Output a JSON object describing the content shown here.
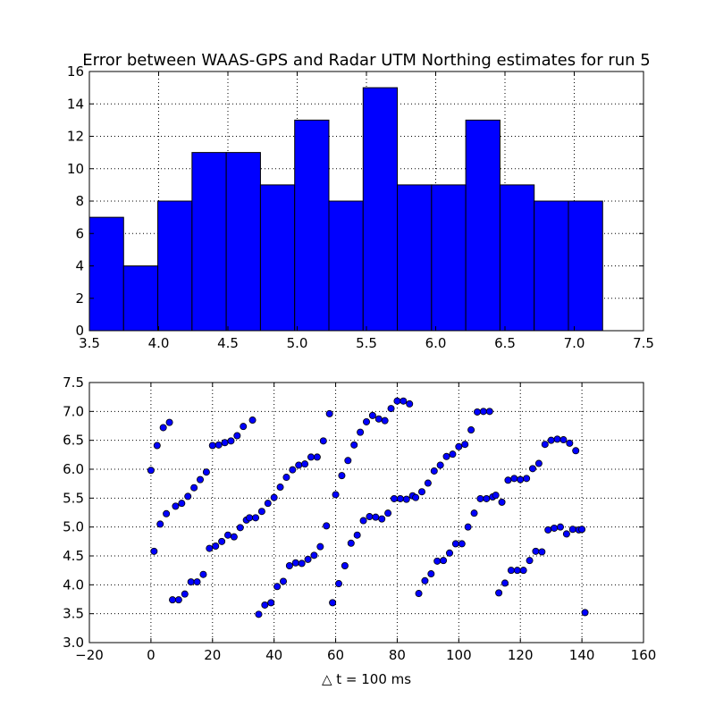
{
  "chart_data": [
    {
      "type": "bar",
      "title": "Error between WAAS-GPS and Radar UTM Northing estimates for run 5",
      "xlabel": "",
      "ylabel": "",
      "xlim": [
        3.5,
        7.5
      ],
      "ylim": [
        0,
        16
      ],
      "xticks": [
        "3.5",
        "4.0",
        "4.5",
        "5.0",
        "5.5",
        "6.0",
        "6.5",
        "7.0",
        "7.5"
      ],
      "yticks": [
        "0",
        "2",
        "4",
        "6",
        "8",
        "10",
        "12",
        "14",
        "16"
      ],
      "grid": true,
      "bar_color": "#0000ff",
      "bin_edges": [
        3.5,
        3.747,
        3.994,
        4.241,
        4.488,
        4.735,
        4.982,
        5.229,
        5.476,
        5.723,
        5.97,
        6.217,
        6.464,
        6.711,
        6.958,
        7.205
      ],
      "values": [
        7,
        4,
        8,
        11,
        11,
        9,
        13,
        8,
        15,
        9,
        9,
        13,
        9,
        8,
        8
      ]
    },
    {
      "type": "scatter",
      "title": "",
      "xlabel": "△ t = 100 ms",
      "ylabel": "",
      "xlim": [
        -20,
        160
      ],
      "ylim": [
        3.0,
        7.5
      ],
      "xticks": [
        "−20",
        "0",
        "20",
        "40",
        "60",
        "80",
        "100",
        "120",
        "140",
        "160"
      ],
      "yticks": [
        "3.0",
        "3.5",
        "4.0",
        "4.5",
        "5.0",
        "5.5",
        "6.0",
        "6.5",
        "7.0",
        "7.5"
      ],
      "grid": true,
      "marker_color": "#0000ff",
      "points": [
        [
          0,
          5.98
        ],
        [
          1,
          4.58
        ],
        [
          2,
          6.41
        ],
        [
          3,
          5.05
        ],
        [
          4,
          6.72
        ],
        [
          5,
          5.23
        ],
        [
          6,
          6.81
        ],
        [
          7,
          3.74
        ],
        [
          8,
          5.36
        ],
        [
          9,
          3.74
        ],
        [
          10,
          5.41
        ],
        [
          11,
          3.84
        ],
        [
          12,
          5.53
        ],
        [
          13,
          4.05
        ],
        [
          14,
          5.68
        ],
        [
          15,
          4.05
        ],
        [
          16,
          5.82
        ],
        [
          17,
          4.18
        ],
        [
          18,
          5.95
        ],
        [
          19,
          4.63
        ],
        [
          20,
          6.41
        ],
        [
          21,
          4.67
        ],
        [
          22,
          6.42
        ],
        [
          23,
          4.75
        ],
        [
          24,
          6.46
        ],
        [
          25,
          4.86
        ],
        [
          26,
          6.49
        ],
        [
          27,
          4.83
        ],
        [
          28,
          6.58
        ],
        [
          29,
          4.99
        ],
        [
          30,
          6.74
        ],
        [
          31,
          5.12
        ],
        [
          32,
          5.16
        ],
        [
          33,
          6.85
        ],
        [
          34,
          5.16
        ],
        [
          35,
          3.49
        ],
        [
          36,
          5.27
        ],
        [
          37,
          3.65
        ],
        [
          38,
          5.41
        ],
        [
          39,
          3.69
        ],
        [
          40,
          5.51
        ],
        [
          41,
          3.97
        ],
        [
          42,
          5.69
        ],
        [
          43,
          4.06
        ],
        [
          44,
          5.86
        ],
        [
          45,
          4.33
        ],
        [
          46,
          5.99
        ],
        [
          47,
          4.38
        ],
        [
          48,
          6.07
        ],
        [
          49,
          4.37
        ],
        [
          50,
          6.09
        ],
        [
          51,
          4.44
        ],
        [
          52,
          6.21
        ],
        [
          53,
          4.51
        ],
        [
          54,
          6.21
        ],
        [
          55,
          4.66
        ],
        [
          56,
          6.49
        ],
        [
          57,
          5.02
        ],
        [
          58,
          6.96
        ],
        [
          59,
          3.69
        ],
        [
          60,
          5.56
        ],
        [
          61,
          4.02
        ],
        [
          62,
          5.89
        ],
        [
          63,
          4.33
        ],
        [
          64,
          6.15
        ],
        [
          65,
          4.72
        ],
        [
          66,
          6.42
        ],
        [
          67,
          4.86
        ],
        [
          68,
          6.64
        ],
        [
          69,
          5.11
        ],
        [
          70,
          6.82
        ],
        [
          71,
          5.18
        ],
        [
          72,
          6.93
        ],
        [
          73,
          5.17
        ],
        [
          74,
          6.87
        ],
        [
          75,
          5.14
        ],
        [
          76,
          6.84
        ],
        [
          77,
          5.24
        ],
        [
          78,
          7.05
        ],
        [
          79,
          5.49
        ],
        [
          80,
          7.18
        ],
        [
          81,
          5.49
        ],
        [
          82,
          7.18
        ],
        [
          83,
          5.48
        ],
        [
          84,
          7.13
        ],
        [
          85,
          5.54
        ],
        [
          86,
          5.51
        ],
        [
          87,
          3.85
        ],
        [
          88,
          5.61
        ],
        [
          89,
          4.07
        ],
        [
          90,
          5.76
        ],
        [
          91,
          4.19
        ],
        [
          92,
          5.97
        ],
        [
          93,
          4.41
        ],
        [
          94,
          6.07
        ],
        [
          95,
          4.42
        ],
        [
          96,
          6.22
        ],
        [
          97,
          4.55
        ],
        [
          98,
          6.26
        ],
        [
          99,
          4.71
        ],
        [
          100,
          6.39
        ],
        [
          101,
          4.71
        ],
        [
          102,
          6.43
        ],
        [
          103,
          5.0
        ],
        [
          104,
          6.68
        ],
        [
          105,
          5.24
        ],
        [
          106,
          6.99
        ],
        [
          107,
          5.49
        ],
        [
          108,
          7.0
        ],
        [
          109,
          5.49
        ],
        [
          110,
          7.0
        ],
        [
          111,
          5.52
        ],
        [
          112,
          5.55
        ],
        [
          113,
          3.86
        ],
        [
          114,
          5.43
        ],
        [
          115,
          4.03
        ],
        [
          116,
          5.81
        ],
        [
          117,
          4.25
        ],
        [
          118,
          5.84
        ],
        [
          119,
          4.25
        ],
        [
          120,
          5.82
        ],
        [
          121,
          4.25
        ],
        [
          122,
          5.84
        ],
        [
          123,
          4.42
        ],
        [
          124,
          6.01
        ],
        [
          125,
          4.58
        ],
        [
          126,
          6.1
        ],
        [
          127,
          4.57
        ],
        [
          128,
          6.43
        ],
        [
          129,
          4.95
        ],
        [
          130,
          6.5
        ],
        [
          131,
          4.98
        ],
        [
          132,
          6.52
        ],
        [
          133,
          5.0
        ],
        [
          134,
          6.51
        ],
        [
          135,
          4.88
        ],
        [
          136,
          6.45
        ],
        [
          137,
          4.96
        ],
        [
          138,
          6.32
        ],
        [
          139,
          4.95
        ],
        [
          140,
          4.96
        ],
        [
          141,
          3.52
        ]
      ]
    }
  ]
}
